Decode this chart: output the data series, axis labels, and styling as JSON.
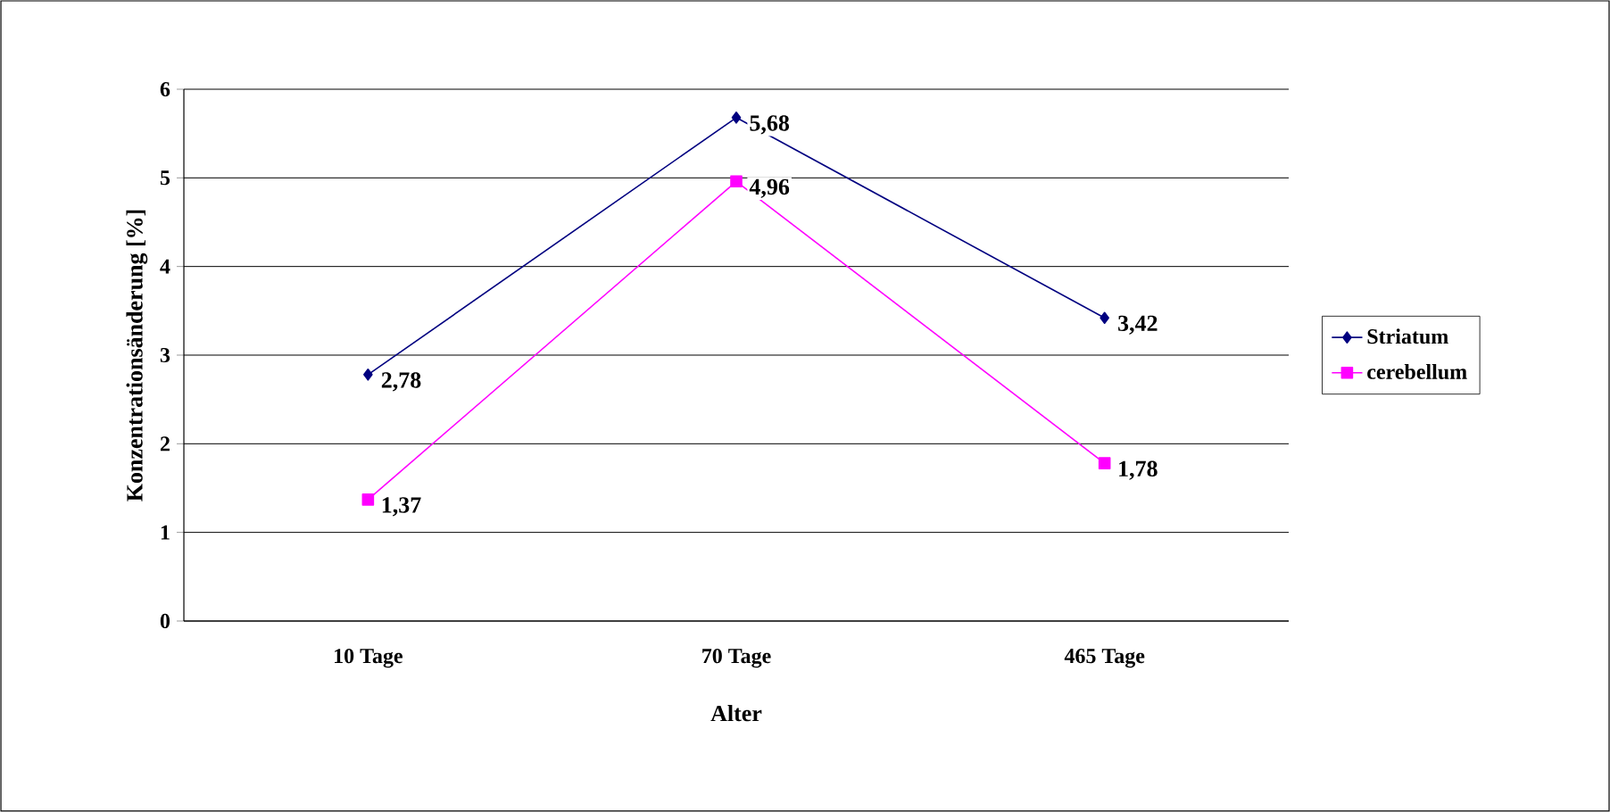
{
  "chart_data": {
    "type": "line",
    "xlabel": "Alter",
    "ylabel": "Konzentrationsänderung [%]",
    "categories": [
      "10 Tage",
      "70 Tage",
      "465 Tage"
    ],
    "series": [
      {
        "name": "Striatum",
        "color": "#000080",
        "marker": "diamond",
        "values": [
          2.78,
          5.68,
          3.42
        ],
        "value_labels": [
          "2,78",
          "5,68",
          "3,42"
        ]
      },
      {
        "name": "cerebellum",
        "color": "#ff00ff",
        "marker": "square",
        "values": [
          1.37,
          4.96,
          1.78
        ],
        "value_labels": [
          "1,37",
          "4,96",
          "1,78"
        ]
      }
    ],
    "ylim": [
      0,
      6
    ],
    "yticks": [
      0,
      1,
      2,
      3,
      4,
      5,
      6
    ],
    "grid": "y",
    "legend": "right",
    "line_style": "solid"
  }
}
